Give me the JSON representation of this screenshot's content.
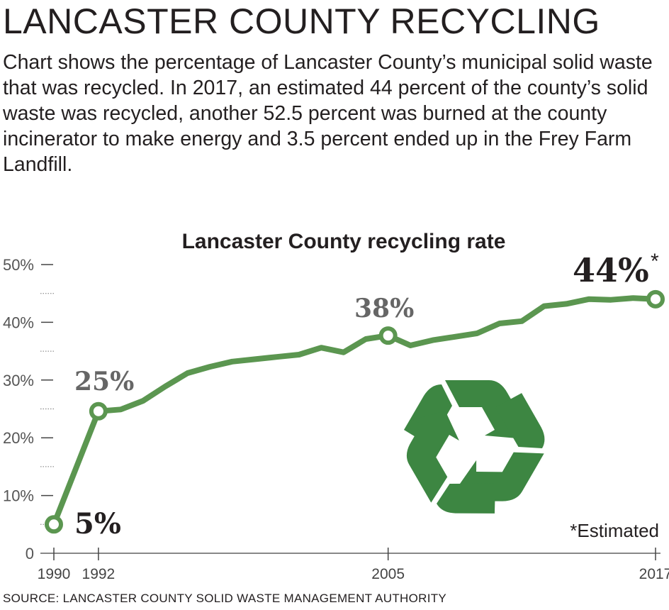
{
  "headline": "LANCASTER COUNTY RECYCLING",
  "intro": "Chart shows the percentage of Lancaster County’s municipal solid waste that was recycled. In 2017, an estimated 44 percent of the county’s solid waste was recycled, another 52.5 percent was burned at the county incinerator to make energy and 3.5 percent ended up in the Frey Farm Landfill.",
  "source": "SOURCE: LANCASTER COUNTY SOLID WASTE MANAGEMENT AUTHORITY",
  "colors": {
    "line": "#5b9650",
    "icon": "#3d8642",
    "text": "#231f20",
    "label_gray": "#666666"
  },
  "icon": "recycle-icon",
  "chart_data": {
    "type": "line",
    "title": "Lancaster County recycling rate",
    "x": [
      1990,
      1992,
      1993,
      1994,
      1995,
      1996,
      1997,
      1998,
      1999,
      2000,
      2001,
      2002,
      2003,
      2004,
      2005,
      2006,
      2007,
      2008,
      2009,
      2010,
      2011,
      2012,
      2013,
      2014,
      2015,
      2016,
      2017
    ],
    "values": [
      5,
      24.6,
      24.9,
      26.4,
      28.9,
      31.2,
      32.3,
      33.2,
      33.6,
      34,
      34.4,
      35.6,
      34.8,
      37.1,
      37.7,
      36,
      36.9,
      37.5,
      38.1,
      39.8,
      40.2,
      42.8,
      43.2,
      44,
      43.9,
      44.2,
      44
    ],
    "ylim": [
      0,
      50
    ],
    "xlim": [
      1990,
      2017
    ],
    "y_ticks": [
      "0",
      "10%",
      "20%",
      "30%",
      "40%",
      "50%"
    ],
    "x_ticks": [
      "1990",
      "1992",
      "2005",
      "2017"
    ],
    "grid": false,
    "annotations": [
      {
        "year": 1990,
        "text": "5%",
        "marker": true
      },
      {
        "year": 1992,
        "text": "25%",
        "marker": true
      },
      {
        "year": 2005,
        "text": "38%",
        "marker": true
      },
      {
        "year": 2017,
        "text": "44%",
        "suffix": "*",
        "marker": true
      }
    ],
    "footnote": "*Estimated"
  }
}
